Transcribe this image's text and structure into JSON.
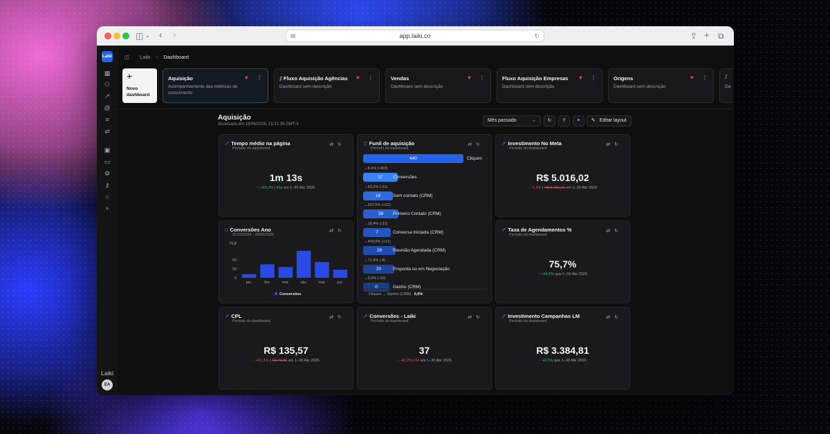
{
  "browser": {
    "url": "app.laiki.co"
  },
  "sidebar": {
    "logo": "Laiki",
    "brand": "Laiki",
    "avatar": "EA",
    "icons": [
      "dashboard-icon",
      "users-icon",
      "trend-icon",
      "at-icon",
      "filter-icon",
      "swap-icon",
      "building-icon",
      "card-icon",
      "user-cog-icon",
      "key-icon",
      "org-icon",
      "bolt-icon"
    ]
  },
  "breadcrumb": {
    "root": "Laiki",
    "current": "Dashboard"
  },
  "dashboards": {
    "new_label": "Novo dashboard",
    "items": [
      {
        "title": "Aquisição",
        "desc": "Acompanhamento das métricas de crescimento",
        "favorite": true,
        "locked": false
      },
      {
        "title": "Fluxo Aquisição Agências",
        "desc": "Dashboard sem descrição",
        "favorite": true,
        "locked": true
      },
      {
        "title": "Vendas",
        "desc": "Dashboard sem descrição",
        "favorite": true,
        "locked": false
      },
      {
        "title": "Fluxo Aquisição Empresas",
        "desc": "Dashboard sem descrição",
        "favorite": true,
        "locked": false
      },
      {
        "title": "Origens",
        "desc": "Dashboard sem descrição",
        "favorite": true,
        "locked": false
      },
      {
        "title": "",
        "desc": "Da",
        "favorite": false,
        "locked": false
      }
    ]
  },
  "section": {
    "title": "Aquisição",
    "updated": "Atualizado em 15/06/2026, 15:21:36 GMT-3",
    "period": "Mês passado",
    "edit_label": "Editar layout"
  },
  "widgets": {
    "tempo": {
      "title": "Tempo médio na página",
      "sub": "Período do dashboard",
      "value": "1m 13s",
      "delta": "+69,2%",
      "prev": "43s",
      "period": "em 1–30 Abr 2026"
    },
    "invest_meta": {
      "title": "Investimento No Meta",
      "sub": "Período do dashboard",
      "value": "R$ 5.016,02",
      "delta": "-1,3%",
      "prev": "R$ 5.081,10",
      "period": "em 1–30 Abr 2026"
    },
    "agend": {
      "title": "Taxa de Agendamentos %",
      "sub": "Período do dashboard",
      "value": "75,7%",
      "delta": "+34,5%",
      "period": "que 1–30 Abr 2026"
    },
    "cpl": {
      "title": "CPL",
      "sub": "Período do dashboard",
      "value": "R$ 135,57",
      "delta": "+91,3%",
      "prev": "R$ 70,86",
      "period": "em 1–30 Abr 2026"
    },
    "conv_laiki": {
      "title": "Conversões - Laiki",
      "sub": "Período do dashboard",
      "value": "37",
      "delta": "-42,2%",
      "prev": "64",
      "period": "em 1–30 Abr 2026"
    },
    "invest_lm": {
      "title": "Investimento Campanhas LM",
      "sub": "Período do dashboard",
      "value": "R$ 3.384,81",
      "delta": "+8,5%",
      "period": "que 1–30 Abr 2026"
    },
    "conv_ano": {
      "title": "Conversões Ano",
      "sub": "01/01/2026 - 30/06/2026"
    },
    "funil": {
      "title": "Funil de aquisição",
      "sub": "Período do dashboard",
      "top": {
        "value": "440",
        "label": "Cliques"
      },
      "steps": [
        {
          "pct": "8,4%",
          "diff": "(-403)",
          "value": "37",
          "label": "Conversões"
        },
        {
          "pct": "43,2%",
          "diff": "(-21)",
          "value": "16",
          "label": "Sem contato (CRM)"
        },
        {
          "pct": "237,5%",
          "diff": "(+22)",
          "value": "38",
          "label": "Primeiro Contato (CRM)"
        },
        {
          "pct": "18,4%",
          "diff": "(-31)",
          "value": "7",
          "label": "Conversa Iniciada (CRM)"
        },
        {
          "pct": "400,0%",
          "diff": "(+21)",
          "value": "28",
          "label": "Reunião Agendada (CRM)"
        },
        {
          "pct": "71,4%",
          "diff": "(-8)",
          "value": "20",
          "label": "Proposta ou em Negociação"
        },
        {
          "pct": "0,0%",
          "diff": "(-20)",
          "value": "0",
          "label": "Ganho (CRM)"
        }
      ],
      "footer_label": "Cliques → Ganho (CRM) :",
      "footer_value": "0,0%"
    }
  },
  "chart_data": {
    "type": "bar",
    "categories": [
      "jan.",
      "fev.",
      "mar.",
      "abr.",
      "mai.",
      "jun."
    ],
    "series": [
      {
        "name": "Conversões",
        "values": [
          8,
          30,
          24,
          60,
          35,
          18
        ],
        "color": "#2b49e6"
      }
    ],
    "yticks": [
      "76,8",
      "40",
      "20",
      "0"
    ],
    "ylim": [
      0,
      76.8
    ],
    "grid": false,
    "legend": "bottom"
  },
  "colors": {
    "accent": "#2563eb",
    "up": "#22c55e",
    "down": "#ef4444",
    "heart": "#ef4444"
  }
}
